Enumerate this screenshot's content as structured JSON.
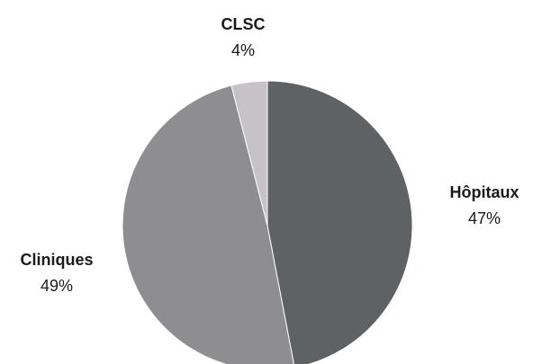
{
  "chart_data": {
    "type": "pie",
    "title": "",
    "slices": [
      {
        "label": "Hôpitaux",
        "value": 47,
        "value_label": "47%",
        "color": "#5f6264"
      },
      {
        "label": "Cliniques",
        "value": 49,
        "value_label": "49%",
        "color": "#8e8e90"
      },
      {
        "label": "CLSC",
        "value": 4,
        "value_label": "4%",
        "color": "#c6c2c6"
      }
    ],
    "legend": "none",
    "start": "top",
    "direction": "clockwise"
  }
}
